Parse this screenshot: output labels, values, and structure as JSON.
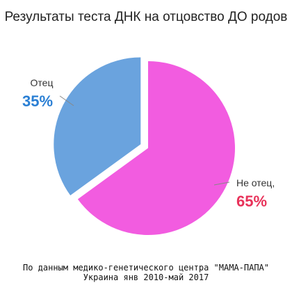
{
  "chart_data": {
    "type": "pie",
    "title": "Результаты теста ДНК на отцовство ДО родов",
    "slices": [
      {
        "label": "Не отец,",
        "value": 65,
        "display": "65%",
        "color": "#f25ce0",
        "label_color": "#e8325a"
      },
      {
        "label": "Отец",
        "value": 35,
        "display": "35%",
        "color": "#6aa3de",
        "label_color": "#2a7fd4"
      }
    ],
    "exploded": "Отец"
  },
  "footer": {
    "line1": "По данным медико-генетического центра \"МАМА-ПАПА\"",
    "line2": "Украина янв 2010-май 2017"
  }
}
